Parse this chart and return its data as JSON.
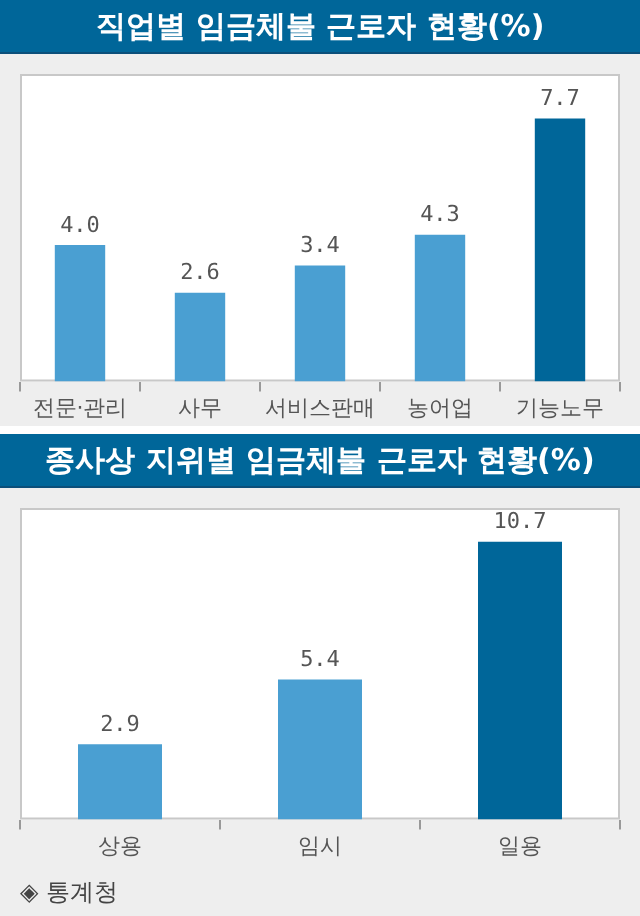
{
  "chart_data": [
    {
      "type": "bar",
      "title": "직업별 임금체불 근로자 현황(%)",
      "categories": [
        "전문·관리",
        "사무",
        "서비스판매",
        "농어업",
        "기능노무"
      ],
      "values": [
        4.0,
        2.6,
        3.4,
        4.3,
        7.7
      ],
      "colors": [
        "#4a9fd2",
        "#4a9fd2",
        "#4a9fd2",
        "#4a9fd2",
        "#006699"
      ],
      "data_labels": true,
      "value_labels": [
        "4.0",
        "2.6",
        "3.4",
        "4.3",
        "7.7"
      ]
    },
    {
      "type": "bar",
      "title": "종사상 지위별 임금체불 근로자 현황(%)",
      "categories": [
        "상용",
        "임시",
        "일용"
      ],
      "values": [
        2.9,
        5.4,
        10.7
      ],
      "colors": [
        "#4a9fd2",
        "#4a9fd2",
        "#006699"
      ],
      "data_labels": true,
      "value_labels": [
        "2.9",
        "5.4",
        "10.7"
      ],
      "annotations": [
        "◈ 통계청"
      ]
    }
  ]
}
